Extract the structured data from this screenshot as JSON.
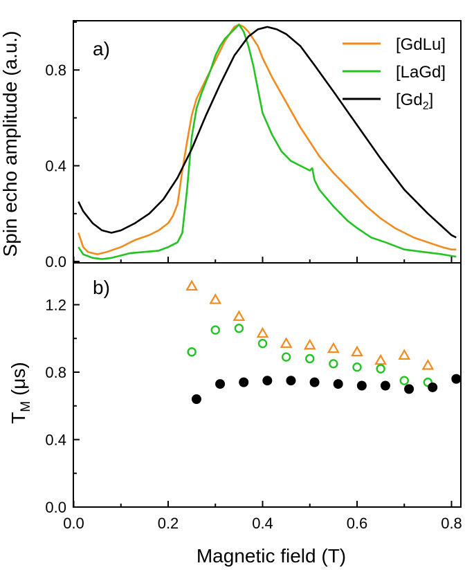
{
  "chart_data": [
    {
      "panel": "a)",
      "type": "line",
      "ylabel": "Spin echo amplitude (a.u.)",
      "xlabel": "",
      "xlim": [
        0.0,
        0.85
      ],
      "ylim": [
        0.0,
        1.0
      ],
      "yticks": [
        0.0,
        0.4,
        0.8
      ],
      "ytick_labels": [
        "0.0",
        "0.4",
        "0.8"
      ],
      "legend": "top-right",
      "legend_entries": [
        {
          "key": "gdlu",
          "label": "[GdLu]"
        },
        {
          "key": "lagd",
          "label": "[LaGd]"
        },
        {
          "key": "gd2",
          "label_main": "[Gd",
          "label_sub": "2",
          "label_end": "]"
        }
      ],
      "series": [
        {
          "name": "[GdLu]",
          "color": "#f28a1e",
          "x": [
            0.01,
            0.02,
            0.03,
            0.05,
            0.07,
            0.1,
            0.13,
            0.16,
            0.18,
            0.2,
            0.21,
            0.22,
            0.23,
            0.24,
            0.25,
            0.26,
            0.27,
            0.28,
            0.29,
            0.3,
            0.31,
            0.32,
            0.33,
            0.34,
            0.35,
            0.36,
            0.37,
            0.38,
            0.39,
            0.4,
            0.42,
            0.44,
            0.46,
            0.48,
            0.5,
            0.52,
            0.55,
            0.58,
            0.6,
            0.62,
            0.65,
            0.68,
            0.7,
            0.72,
            0.75,
            0.78,
            0.8,
            0.81
          ],
          "values": [
            0.12,
            0.06,
            0.04,
            0.03,
            0.04,
            0.06,
            0.09,
            0.11,
            0.13,
            0.16,
            0.19,
            0.24,
            0.38,
            0.5,
            0.61,
            0.68,
            0.72,
            0.76,
            0.8,
            0.84,
            0.88,
            0.92,
            0.95,
            0.98,
            0.99,
            0.98,
            0.96,
            0.93,
            0.9,
            0.85,
            0.77,
            0.7,
            0.63,
            0.56,
            0.5,
            0.44,
            0.37,
            0.31,
            0.27,
            0.23,
            0.18,
            0.14,
            0.12,
            0.1,
            0.08,
            0.06,
            0.05,
            0.05
          ]
        },
        {
          "name": "[LaGd]",
          "color": "#22c322",
          "x": [
            0.01,
            0.02,
            0.04,
            0.06,
            0.08,
            0.1,
            0.12,
            0.15,
            0.18,
            0.2,
            0.22,
            0.23,
            0.24,
            0.25,
            0.26,
            0.27,
            0.28,
            0.29,
            0.3,
            0.31,
            0.32,
            0.33,
            0.34,
            0.35,
            0.36,
            0.37,
            0.38,
            0.39,
            0.4,
            0.42,
            0.44,
            0.46,
            0.48,
            0.5,
            0.505,
            0.51,
            0.52,
            0.55,
            0.58,
            0.6,
            0.63,
            0.66,
            0.7,
            0.74,
            0.78,
            0.81
          ],
          "values": [
            0.06,
            0.03,
            0.015,
            0.01,
            0.015,
            0.025,
            0.035,
            0.04,
            0.045,
            0.06,
            0.08,
            0.12,
            0.3,
            0.52,
            0.64,
            0.7,
            0.75,
            0.8,
            0.86,
            0.9,
            0.93,
            0.95,
            0.97,
            0.99,
            0.96,
            0.9,
            0.82,
            0.72,
            0.62,
            0.53,
            0.46,
            0.42,
            0.4,
            0.38,
            0.39,
            0.34,
            0.3,
            0.23,
            0.17,
            0.14,
            0.1,
            0.08,
            0.05,
            0.04,
            0.03,
            0.02
          ]
        },
        {
          "name": "[Gd2]",
          "color": "#000000",
          "x": [
            0.01,
            0.02,
            0.04,
            0.06,
            0.08,
            0.1,
            0.13,
            0.16,
            0.19,
            0.22,
            0.25,
            0.28,
            0.31,
            0.34,
            0.37,
            0.39,
            0.41,
            0.43,
            0.45,
            0.48,
            0.51,
            0.55,
            0.6,
            0.65,
            0.7,
            0.75,
            0.8,
            0.81
          ],
          "values": [
            0.25,
            0.21,
            0.16,
            0.13,
            0.12,
            0.13,
            0.16,
            0.2,
            0.26,
            0.35,
            0.47,
            0.61,
            0.74,
            0.86,
            0.94,
            0.97,
            0.98,
            0.97,
            0.95,
            0.9,
            0.82,
            0.71,
            0.57,
            0.43,
            0.3,
            0.2,
            0.11,
            0.1
          ]
        }
      ]
    },
    {
      "panel": "b)",
      "type": "scatter",
      "xlabel": "Magnetic field (T)",
      "ylabel_main": "T",
      "ylabel_sub": "M",
      "ylabel_units": " (μs)",
      "xlim": [
        0.0,
        0.85
      ],
      "ylim": [
        0.0,
        1.4
      ],
      "xticks": [
        0.0,
        0.2,
        0.4,
        0.6,
        0.8
      ],
      "xtick_labels": [
        "0.0",
        "0.2",
        "0.4",
        "0.6",
        "0.8"
      ],
      "yticks": [
        0.0,
        0.4,
        0.8,
        1.2
      ],
      "ytick_labels": [
        "0.0",
        "0.4",
        "0.8",
        "1.2"
      ],
      "series": [
        {
          "name": "[GdLu]",
          "marker": "open-triangle",
          "color": "#f28a1e",
          "x": [
            0.25,
            0.3,
            0.35,
            0.4,
            0.45,
            0.5,
            0.55,
            0.6,
            0.65,
            0.7,
            0.75
          ],
          "values": [
            1.31,
            1.23,
            1.13,
            1.03,
            0.97,
            0.96,
            0.94,
            0.92,
            0.87,
            0.9,
            0.84
          ]
        },
        {
          "name": "[LaGd]",
          "marker": "open-circle",
          "color": "#22c322",
          "x": [
            0.25,
            0.3,
            0.35,
            0.4,
            0.45,
            0.5,
            0.55,
            0.6,
            0.65,
            0.7,
            0.75
          ],
          "values": [
            0.92,
            1.05,
            1.06,
            0.97,
            0.89,
            0.88,
            0.85,
            0.83,
            0.82,
            0.75,
            0.74
          ]
        },
        {
          "name": "[Gd2]",
          "marker": "filled-circle",
          "color": "#000000",
          "x": [
            0.26,
            0.31,
            0.36,
            0.41,
            0.46,
            0.51,
            0.56,
            0.61,
            0.66,
            0.71,
            0.76,
            0.81
          ],
          "values": [
            0.64,
            0.73,
            0.74,
            0.75,
            0.75,
            0.74,
            0.73,
            0.72,
            0.72,
            0.7,
            0.71,
            0.76
          ]
        }
      ]
    }
  ]
}
